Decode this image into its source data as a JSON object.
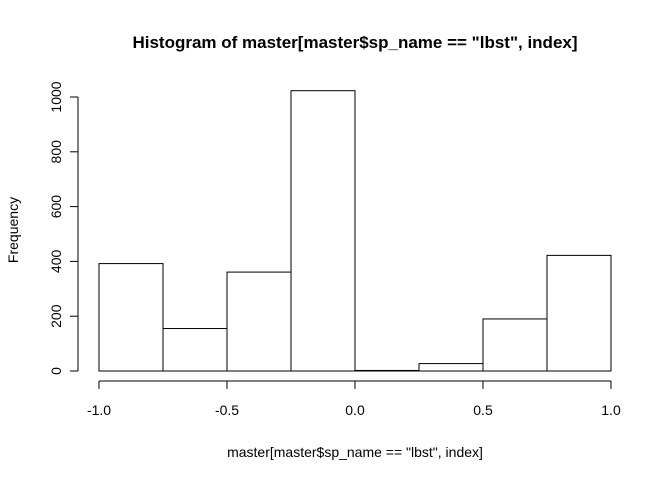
{
  "chart_data": {
    "type": "bar",
    "title": "Histogram of master[master$sp_name == \"lbst\", index]",
    "xlabel": "master[master$sp_name == \"lbst\", index]",
    "ylabel": "Frequency",
    "bins": [
      {
        "x0": -1.0,
        "x1": -0.75,
        "count": 392
      },
      {
        "x0": -0.75,
        "x1": -0.5,
        "count": 155
      },
      {
        "x0": -0.5,
        "x1": -0.25,
        "count": 361
      },
      {
        "x0": -0.25,
        "x1": 0.0,
        "count": 1023
      },
      {
        "x0": 0.0,
        "x1": 0.25,
        "count": 2
      },
      {
        "x0": 0.25,
        "x1": 0.5,
        "count": 27
      },
      {
        "x0": 0.5,
        "x1": 0.75,
        "count": 190
      },
      {
        "x0": 0.75,
        "x1": 1.0,
        "count": 422
      }
    ],
    "xlim": [
      -1.0,
      1.0
    ],
    "ylim": [
      0,
      1000
    ],
    "xticks": [
      -1.0,
      -0.5,
      0.0,
      0.5,
      1.0
    ],
    "xtick_labels": [
      "-1.0",
      "-0.5",
      "0.0",
      "0.5",
      "1.0"
    ],
    "yticks": [
      0,
      200,
      400,
      600,
      800,
      1000
    ],
    "ytick_labels": [
      "0",
      "200",
      "400",
      "600",
      "800",
      "1000"
    ],
    "grid": false,
    "bar_fill": "#ffffff",
    "bar_stroke": "#000000"
  }
}
